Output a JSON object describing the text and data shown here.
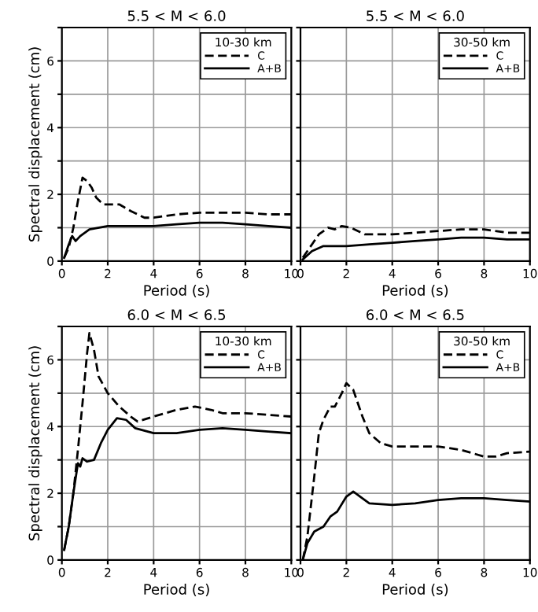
{
  "chart_data": [
    {
      "type": "line",
      "title": "5.5 < M < 6.0",
      "xlabel": "Period (s)",
      "ylabel": "Spectral displacement (cm)",
      "legend_title": "10-30 km",
      "legend": "top right",
      "grid": true,
      "xlim": [
        0,
        10
      ],
      "ylim": [
        0,
        7
      ],
      "xticks": [
        0,
        2,
        4,
        6,
        8,
        10
      ],
      "yticks": [
        0,
        {
          "value": 1,
          "label": null
        },
        2,
        {
          "value": 3,
          "label": null
        },
        4,
        {
          "value": 5,
          "label": null
        },
        6,
        {
          "value": 7,
          "label": null
        }
      ],
      "series": [
        {
          "name": "C",
          "color": "#000000",
          "line_style": "dashed",
          "x": [
            0.1,
            0.3,
            0.5,
            0.7,
            0.9,
            1.1,
            1.3,
            1.5,
            1.8,
            2.5,
            3.0,
            3.6,
            4,
            5,
            6,
            7,
            8,
            9,
            10
          ],
          "values": [
            0.1,
            0.4,
            1.0,
            1.8,
            2.5,
            2.4,
            2.2,
            1.9,
            1.7,
            1.7,
            1.5,
            1.3,
            1.3,
            1.4,
            1.45,
            1.45,
            1.45,
            1.4,
            1.4
          ]
        },
        {
          "name": "A+B",
          "color": "#000000",
          "line_style": "solid",
          "x": [
            0.1,
            0.3,
            0.45,
            0.6,
            0.8,
            1.2,
            2,
            3,
            4,
            5,
            6,
            7,
            8,
            9,
            10
          ],
          "values": [
            0.1,
            0.5,
            0.75,
            0.6,
            0.75,
            0.95,
            1.05,
            1.05,
            1.05,
            1.1,
            1.15,
            1.15,
            1.1,
            1.05,
            1.0
          ]
        }
      ]
    },
    {
      "type": "line",
      "title": "5.5 < M < 6.0",
      "xlabel": "Period (s)",
      "legend_title": "30-50 km",
      "legend": "top right",
      "grid": true,
      "tick_labels": "x",
      "xlim": [
        0,
        10
      ],
      "ylim": [
        0,
        7
      ],
      "xticks": [
        0,
        2,
        4,
        6,
        8,
        10
      ],
      "yticks": [
        0,
        1,
        2,
        3,
        4,
        5,
        6,
        7
      ],
      "series": [
        {
          "name": "C",
          "color": "#000000",
          "line_style": "dashed",
          "x": [
            0.1,
            0.5,
            0.8,
            1.2,
            1.5,
            1.8,
            2.2,
            2.8,
            4,
            5,
            6,
            7,
            8,
            9,
            10
          ],
          "values": [
            0.1,
            0.5,
            0.8,
            1.0,
            0.95,
            1.05,
            1.0,
            0.8,
            0.8,
            0.85,
            0.9,
            0.95,
            0.95,
            0.85,
            0.85
          ]
        },
        {
          "name": "A+B",
          "color": "#000000",
          "line_style": "solid",
          "x": [
            0.1,
            0.5,
            1,
            2,
            3,
            4,
            5,
            6,
            7,
            8,
            9,
            10
          ],
          "values": [
            0.05,
            0.3,
            0.45,
            0.45,
            0.5,
            0.55,
            0.6,
            0.65,
            0.7,
            0.7,
            0.65,
            0.65
          ]
        }
      ]
    },
    {
      "type": "line",
      "title": "6.0 < M < 6.5",
      "xlabel": "Period (s)",
      "ylabel": "Spectral displacement (cm)",
      "legend_title": "10-30 km",
      "legend": "top right",
      "grid": true,
      "xlim": [
        0,
        10
      ],
      "ylim": [
        0,
        7
      ],
      "xticks": [
        0,
        2,
        4,
        6,
        8,
        10
      ],
      "yticks": [
        0,
        {
          "value": 1,
          "label": null
        },
        2,
        {
          "value": 3,
          "label": null
        },
        4,
        {
          "value": 5,
          "label": null
        },
        6,
        {
          "value": 7,
          "label": null
        }
      ],
      "series": [
        {
          "name": "C",
          "color": "#000000",
          "line_style": "dashed",
          "x": [
            0.1,
            0.3,
            0.5,
            0.7,
            0.9,
            1.1,
            1.2,
            1.4,
            1.6,
            2,
            2.5,
            3,
            3.3,
            4,
            5,
            5.8,
            6.5,
            7,
            8,
            9,
            10
          ],
          "values": [
            0.3,
            1.0,
            2.0,
            3.3,
            4.7,
            6.2,
            6.8,
            6.3,
            5.5,
            5.0,
            4.6,
            4.3,
            4.15,
            4.3,
            4.5,
            4.6,
            4.5,
            4.4,
            4.4,
            4.35,
            4.3
          ]
        },
        {
          "name": "A+B",
          "color": "#000000",
          "line_style": "solid",
          "x": [
            0.1,
            0.3,
            0.5,
            0.7,
            0.8,
            0.9,
            1.1,
            1.4,
            1.7,
            2,
            2.4,
            2.8,
            3.2,
            4,
            5,
            6,
            7,
            8,
            9,
            10
          ],
          "values": [
            0.3,
            1.0,
            2.0,
            2.9,
            2.8,
            3.05,
            2.95,
            3.0,
            3.5,
            3.9,
            4.25,
            4.2,
            3.95,
            3.8,
            3.8,
            3.9,
            3.95,
            3.9,
            3.85,
            3.8
          ]
        }
      ]
    },
    {
      "type": "line",
      "title": "6.0 < M < 6.5",
      "xlabel": "Period (s)",
      "legend_title": "30-50 km",
      "legend": "top right",
      "grid": true,
      "tick_labels": "x",
      "xlim": [
        0,
        10
      ],
      "ylim": [
        0,
        7
      ],
      "xticks": [
        0,
        2,
        4,
        6,
        8,
        10
      ],
      "yticks": [
        0,
        1,
        2,
        3,
        4,
        5,
        6,
        7
      ],
      "series": [
        {
          "name": "C",
          "color": "#000000",
          "line_style": "dashed",
          "x": [
            0.1,
            0.3,
            0.6,
            0.8,
            1.0,
            1.3,
            1.5,
            1.8,
            2,
            2.3,
            2.7,
            3,
            3.5,
            4,
            5,
            6,
            7,
            8,
            8.5,
            9,
            10
          ],
          "values": [
            0,
            0.7,
            2.5,
            3.8,
            4.2,
            4.6,
            4.6,
            5.0,
            5.3,
            5.1,
            4.3,
            3.8,
            3.5,
            3.4,
            3.4,
            3.4,
            3.3,
            3.1,
            3.1,
            3.2,
            3.25
          ]
        },
        {
          "name": "A+B",
          "color": "#000000",
          "line_style": "solid",
          "x": [
            0.1,
            0.3,
            0.6,
            1,
            1.3,
            1.6,
            2,
            2.3,
            2.6,
            3,
            4,
            5,
            6,
            7,
            8,
            9,
            10
          ],
          "values": [
            0,
            0.5,
            0.85,
            1.0,
            1.3,
            1.45,
            1.9,
            2.05,
            1.9,
            1.7,
            1.65,
            1.7,
            1.8,
            1.85,
            1.85,
            1.8,
            1.75
          ]
        }
      ]
    }
  ]
}
